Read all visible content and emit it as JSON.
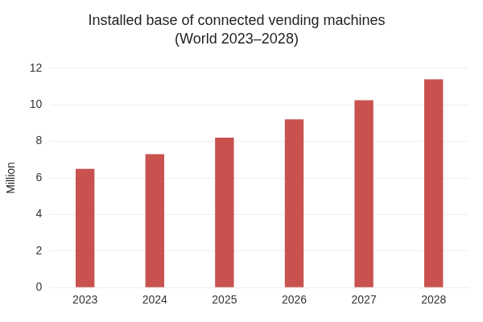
{
  "chart_data": {
    "type": "bar",
    "title": [
      "Installed base of connected vending machines",
      "(World 2023–2028)"
    ],
    "y_label": "Million",
    "categories": [
      "2023",
      "2024",
      "2025",
      "2026",
      "2027",
      "2028"
    ],
    "values": [
      6.5,
      7.3,
      8.2,
      9.2,
      10.25,
      11.4
    ],
    "color": "#c9524f",
    "ylim": [
      0,
      12
    ],
    "yticks": [
      0,
      2,
      4,
      6,
      8,
      10,
      12
    ],
    "grid": true
  }
}
